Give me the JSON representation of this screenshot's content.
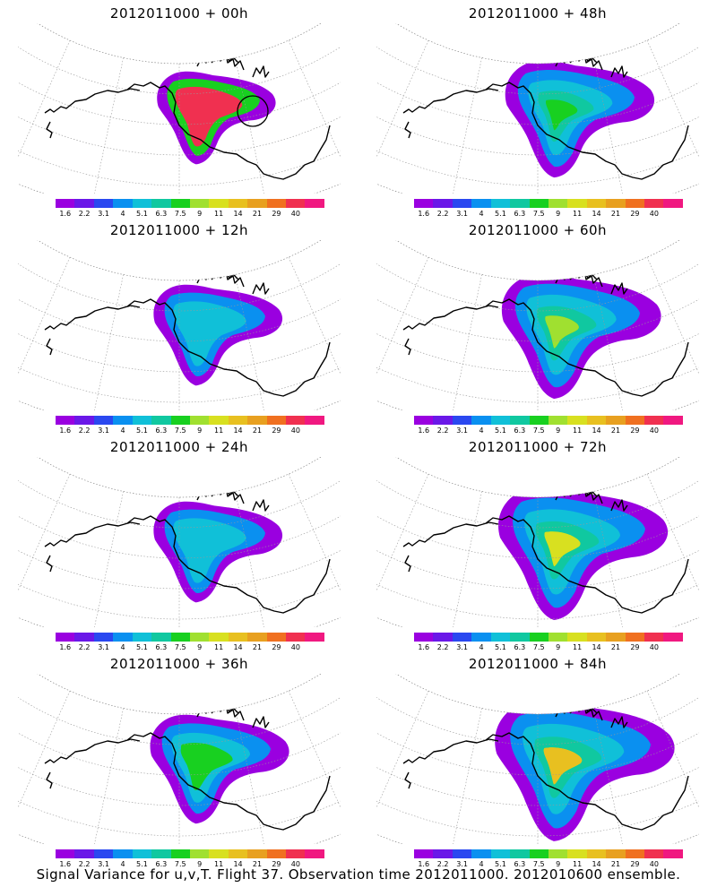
{
  "panels": [
    {
      "title": "2012011000 + 00h",
      "level": 0
    },
    {
      "title": "2012011000 + 48h",
      "level": 3
    },
    {
      "title": "2012011000 + 12h",
      "level": 1
    },
    {
      "title": "2012011000 + 60h",
      "level": 4
    },
    {
      "title": "2012011000 + 24h",
      "level": 1
    },
    {
      "title": "2012011000 + 72h",
      "level": 5
    },
    {
      "title": "2012011000 + 36h",
      "level": 2
    },
    {
      "title": "2012011000 + 84h",
      "level": 6
    }
  ],
  "colorbar": {
    "labels": [
      "1.6",
      "2.2",
      "3.1",
      "4",
      "5.1",
      "6.3",
      "7.5",
      "9",
      "11",
      "14",
      "21",
      "29",
      "40"
    ],
    "colors": [
      "#9a00e0",
      "#6a18e8",
      "#2a48f0",
      "#0a90f0",
      "#10c0d8",
      "#10c8a0",
      "#18d020",
      "#a0e030",
      "#d8e020",
      "#e8c020",
      "#e8a020",
      "#f07020",
      "#f03050",
      "#f01880"
    ]
  },
  "footer": "Signal Variance for u,v,T. Flight 37. Observation time 2012011000. 2012010600 ensemble."
}
